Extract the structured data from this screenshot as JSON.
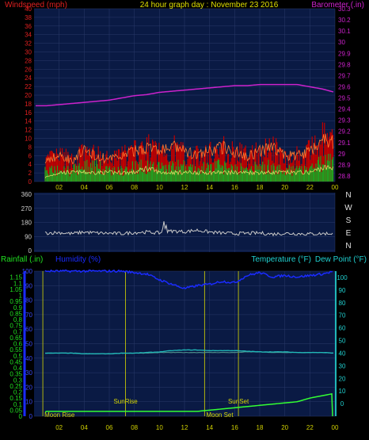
{
  "title": "24 hour graph day : November 23 2016",
  "colors": {
    "plot_bg": "#0a1a44",
    "grid": "#2a3a6a",
    "windspeed": "#e02020",
    "wind_gust": "#c00000",
    "wind_avg": "#20a020",
    "barometer": "#cc22cc",
    "direction": "#c8c8c8",
    "humidity": "#1a2bff",
    "temperature": "#20b8b8",
    "dewpoint": "#4a8a8a",
    "rain": "#33ff33",
    "event": "#d8d800",
    "rainfall_label": "#20e020",
    "temp_label": "#20d0d0"
  },
  "chart_data": [
    {
      "type": "line",
      "name": "wind-barometer",
      "left_label": "Windspeed (mph)",
      "right_label": "Barometer (.in)",
      "x_ticks": [
        "02",
        "04",
        "06",
        "08",
        "10",
        "12",
        "14",
        "16",
        "18",
        "20",
        "22",
        "00"
      ],
      "left_ticks": [
        "0",
        "2",
        "4",
        "6",
        "8",
        "10",
        "12",
        "14",
        "16",
        "18",
        "20",
        "22",
        "24",
        "26",
        "28",
        "30",
        "32",
        "34",
        "36",
        "38",
        "40"
      ],
      "right_ticks": [
        "28.8",
        "28.9",
        "29",
        "29.1",
        "29.2",
        "29.3",
        "29.4",
        "29.5",
        "29.6",
        "29.7",
        "29.8",
        "29.9",
        "30",
        "30.1",
        "30.2",
        "30.3"
      ],
      "left_ylim": [
        0,
        40
      ],
      "right_ylim": [
        28.75,
        30.3
      ],
      "series": [
        {
          "key": "barometer",
          "axis": "right",
          "x": [
            0,
            1,
            2,
            3,
            4,
            5,
            6,
            7,
            8,
            9,
            10,
            11,
            12,
            13,
            14,
            15,
            16,
            17,
            18,
            19,
            20,
            21,
            22,
            23,
            24
          ],
          "values": [
            29.43,
            29.43,
            29.44,
            29.45,
            29.46,
            29.47,
            29.48,
            29.5,
            29.52,
            29.53,
            29.55,
            29.56,
            29.57,
            29.58,
            29.59,
            29.6,
            29.61,
            29.61,
            29.62,
            29.62,
            29.62,
            29.62,
            29.6,
            29.58,
            29.55
          ]
        },
        {
          "key": "gust",
          "axis": "left",
          "x": [
            0,
            1,
            2,
            3,
            4,
            5,
            6,
            7,
            8,
            9,
            10,
            11,
            12,
            13,
            14,
            15,
            16,
            17,
            18,
            19,
            20,
            21,
            22,
            23,
            24
          ],
          "values": [
            2,
            5,
            6,
            5,
            7,
            6,
            5,
            6,
            7,
            8,
            7,
            8,
            7,
            6,
            7,
            8,
            7,
            6,
            7,
            8,
            6,
            6,
            7,
            10,
            9
          ]
        },
        {
          "key": "speed",
          "axis": "left",
          "x": [
            0,
            1,
            2,
            3,
            4,
            5,
            6,
            7,
            8,
            9,
            10,
            11,
            12,
            13,
            14,
            15,
            16,
            17,
            18,
            19,
            20,
            21,
            22,
            23,
            24
          ],
          "values": [
            1,
            3,
            3,
            3,
            4,
            4,
            3,
            3,
            4,
            4,
            4,
            4,
            4,
            3,
            4,
            4,
            4,
            3,
            4,
            4,
            3,
            3,
            4,
            5,
            5
          ]
        },
        {
          "key": "avg",
          "axis": "left",
          "x": [
            0,
            1,
            2,
            3,
            4,
            5,
            6,
            7,
            8,
            9,
            10,
            11,
            12,
            13,
            14,
            15,
            16,
            17,
            18,
            19,
            20,
            21,
            22,
            23,
            24
          ],
          "values": [
            0,
            1,
            2,
            2,
            2,
            2,
            2,
            2,
            2,
            3,
            2,
            2,
            2,
            2,
            2,
            2,
            2,
            2,
            2,
            2,
            2,
            2,
            2,
            3,
            3
          ]
        }
      ]
    },
    {
      "type": "line",
      "name": "wind-direction",
      "left_ticks": [
        "0",
        "90",
        "180",
        "270",
        "360"
      ],
      "compass": [
        "N",
        "W",
        "S",
        "E",
        "N"
      ],
      "ylim": [
        0,
        360
      ],
      "series": [
        {
          "key": "direction",
          "x": [
            0,
            1,
            2,
            3,
            4,
            5,
            6,
            7,
            8,
            9,
            10,
            11,
            12,
            13,
            14,
            15,
            16,
            17,
            18,
            19,
            20,
            21,
            22,
            23,
            24
          ],
          "values": [
            110,
            112,
            115,
            108,
            118,
            112,
            110,
            108,
            115,
            118,
            112,
            125,
            120,
            130,
            118,
            112,
            108,
            110,
            112,
            105,
            110,
            108,
            106,
            108,
            110
          ]
        }
      ]
    },
    {
      "type": "line",
      "name": "rain-humidity-temperature",
      "rain_label": "Rainfall (.in)",
      "humidity_label": "Humidity (%)",
      "temperature_label": "Temperature (°F)",
      "dewpoint_label": "Dew Point (°F)",
      "rain_ticks": [
        "0",
        "0.05",
        "0.1",
        "0.15",
        "0.2",
        "0.25",
        "0.3",
        "0.35",
        "0.4",
        "0.45",
        "0.5",
        "0.55",
        "0.6",
        "0.65",
        "0.7",
        "0.75",
        "0.8",
        "0.85",
        "0.9",
        "0.95",
        "1",
        "1.05",
        "1.1",
        "1.15"
      ],
      "humidity_ticks": [
        "0",
        "10",
        "20",
        "30",
        "40",
        "50",
        "60",
        "70",
        "80",
        "90",
        "100"
      ],
      "temp_ticks": [
        "0",
        "10",
        "20",
        "30",
        "40",
        "50",
        "60",
        "70",
        "80",
        "90",
        "100"
      ],
      "rain_ylim": [
        0,
        1.2
      ],
      "humidity_ylim": [
        0,
        100
      ],
      "temp_ylim": [
        -10,
        105
      ],
      "events": [
        {
          "label": "Moon Rise",
          "x": 0.7
        },
        {
          "label": "SunRise",
          "x": 7.3
        },
        {
          "label": "Moon Set",
          "x": 13.6
        },
        {
          "label": "SunSet",
          "x": 16.3
        }
      ],
      "series": [
        {
          "key": "humidity",
          "axis": "humidity",
          "x": [
            0,
            1,
            2,
            3,
            4,
            5,
            6,
            7,
            8,
            9,
            10,
            11,
            12,
            13,
            14,
            15,
            16,
            17,
            18,
            19,
            20,
            21,
            22,
            23,
            24
          ],
          "values": [
            100,
            100,
            100,
            100,
            100,
            100,
            100,
            100,
            99,
            98,
            94,
            91,
            88,
            90,
            91,
            93,
            92,
            97,
            99,
            96,
            97,
            96,
            97,
            98,
            100
          ]
        },
        {
          "key": "temperature",
          "axis": "temp",
          "x": [
            0,
            1,
            2,
            3,
            4,
            5,
            6,
            7,
            8,
            9,
            10,
            11,
            12,
            13,
            14,
            15,
            16,
            17,
            18,
            19,
            20,
            21,
            22,
            23,
            24
          ],
          "values": [
            40,
            40,
            40,
            40,
            39.5,
            39.5,
            39.5,
            40,
            40,
            40.5,
            41,
            42,
            42.5,
            42.5,
            42,
            42,
            42,
            41.5,
            41,
            41,
            41,
            40.5,
            40.5,
            40.5,
            40
          ]
        },
        {
          "key": "dewpoint",
          "axis": "temp",
          "x": [
            0,
            1,
            2,
            3,
            4,
            5,
            6,
            7,
            8,
            9,
            10,
            11,
            12,
            13,
            14,
            15,
            16,
            17,
            18,
            19,
            20,
            21,
            22,
            23,
            24
          ],
          "values": [
            40,
            40,
            40,
            40,
            39.5,
            39.5,
            39.5,
            40,
            40,
            40,
            40.5,
            40.5,
            40.5,
            40.5,
            40.5,
            40.5,
            40.5,
            41,
            41,
            40.5,
            40.5,
            40.5,
            40.5,
            40.5,
            40
          ]
        },
        {
          "key": "rain",
          "axis": "rain",
          "x": [
            0,
            1,
            2,
            3,
            4,
            5,
            6,
            7,
            8,
            9,
            10,
            11,
            12,
            13,
            14,
            15,
            16,
            17,
            18,
            19,
            20,
            21,
            22,
            23,
            24
          ],
          "values": [
            0,
            0.04,
            0.04,
            0.04,
            0.04,
            0.04,
            0.04,
            0.04,
            0.04,
            0.04,
            0.04,
            0.04,
            0.04,
            0.04,
            0.05,
            0.06,
            0.07,
            0.08,
            0.09,
            0.1,
            0.11,
            0.12,
            0.15,
            0.17,
            0.19
          ]
        }
      ]
    }
  ]
}
